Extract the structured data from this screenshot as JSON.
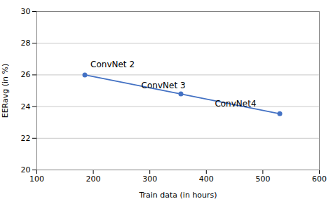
{
  "chart_data": {
    "type": "line",
    "x": [
      185,
      355,
      530
    ],
    "values": [
      26.0,
      24.8,
      23.55
    ],
    "color": "#4472C4",
    "marker": "circle",
    "annotations": [
      {
        "text": "ConvNet 2",
        "x": 195,
        "y": 26.5
      },
      {
        "text": "ConvNet 3",
        "x": 285,
        "y": 25.15
      },
      {
        "text": "ConvNet4",
        "x": 415,
        "y": 24.0
      }
    ],
    "xlabel": "Train data (in hours)",
    "ylabel": "EERavg (in %)",
    "xlim": [
      100,
      600
    ],
    "ylim": [
      20,
      30
    ],
    "xticks": [
      100,
      200,
      300,
      400,
      500,
      600
    ],
    "yticks": [
      20,
      22,
      24,
      26,
      28,
      30
    ],
    "grid": "y"
  }
}
